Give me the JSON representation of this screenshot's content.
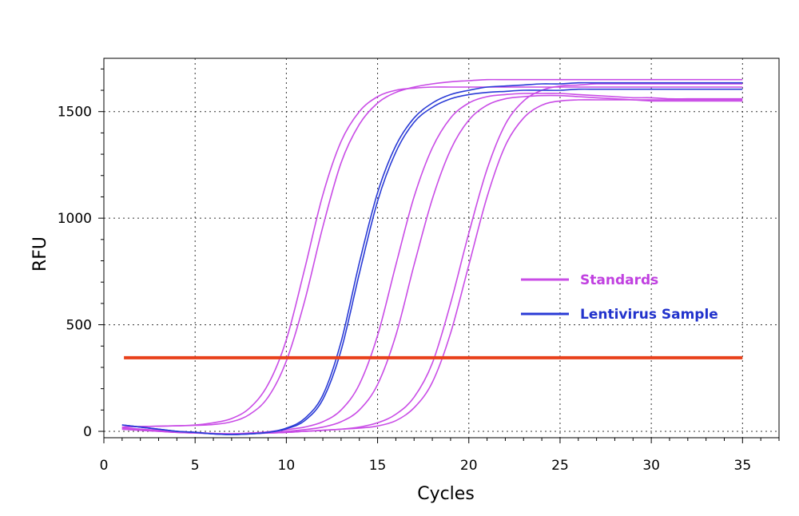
{
  "colors": {
    "standards": "#c94ce6",
    "sample": "#2a3bd6",
    "threshold": "#e8401a",
    "legend_standards_text": "#c040e0",
    "legend_sample_text": "#2233cc"
  },
  "chart_data": {
    "type": "line",
    "title": "",
    "xlabel": "Cycles",
    "ylabel": "RFU",
    "xlim": [
      0,
      37
    ],
    "ylim": [
      -30,
      1750
    ],
    "xticks": [
      0,
      5,
      10,
      15,
      20,
      25,
      30,
      35
    ],
    "yticks": [
      0,
      500,
      1000,
      1500
    ],
    "grid": true,
    "legend_position": "center-right",
    "legend": [
      {
        "label": "Standards",
        "series_group": "standards"
      },
      {
        "label": "Lentivirus Sample",
        "series_group": "sample"
      }
    ],
    "threshold": {
      "y": 345,
      "x_start": 1.1,
      "x_end": 35
    },
    "x": [
      1,
      2,
      3,
      4,
      5,
      6,
      7,
      8,
      9,
      10,
      11,
      12,
      13,
      14,
      15,
      16,
      17,
      18,
      19,
      20,
      21,
      22,
      23,
      24,
      25,
      26,
      27,
      28,
      29,
      30,
      31,
      32,
      33,
      34,
      35
    ],
    "series": [
      {
        "group": "standards",
        "values": [
          20,
          22,
          24,
          26,
          30,
          40,
          60,
          110,
          220,
          430,
          760,
          1110,
          1360,
          1500,
          1570,
          1600,
          1610,
          1615,
          1615,
          1615,
          1615,
          1615,
          1615,
          1615,
          1615,
          1615,
          1615,
          1615,
          1615,
          1615,
          1615,
          1615,
          1615,
          1615,
          1615
        ]
      },
      {
        "group": "standards",
        "values": [
          20,
          22,
          24,
          26,
          28,
          32,
          45,
          80,
          160,
          330,
          610,
          960,
          1260,
          1440,
          1540,
          1590,
          1615,
          1630,
          1640,
          1645,
          1650,
          1650,
          1650,
          1650,
          1650,
          1650,
          1650,
          1650,
          1650,
          1650,
          1650,
          1650,
          1650,
          1650,
          1650
        ]
      },
      {
        "group": "standards",
        "values": [
          15,
          10,
          5,
          0,
          -5,
          -10,
          -12,
          -8,
          -2,
          8,
          20,
          45,
          100,
          220,
          450,
          780,
          1100,
          1330,
          1470,
          1540,
          1570,
          1580,
          1585,
          1585,
          1585,
          1580,
          1575,
          1570,
          1565,
          1565,
          1560,
          1560,
          1560,
          1560,
          1560
        ]
      },
      {
        "group": "standards",
        "values": [
          15,
          10,
          5,
          0,
          -5,
          -10,
          -12,
          -10,
          -5,
          0,
          8,
          20,
          45,
          100,
          220,
          450,
          780,
          1090,
          1320,
          1460,
          1530,
          1560,
          1570,
          1575,
          1575,
          1570,
          1565,
          1560,
          1555,
          1550,
          1550,
          1550,
          1550,
          1550,
          1550
        ]
      },
      {
        "group": "standards",
        "values": [
          10,
          5,
          0,
          -5,
          -8,
          -10,
          -12,
          -10,
          -8,
          -5,
          0,
          5,
          10,
          20,
          40,
          80,
          160,
          320,
          600,
          930,
          1230,
          1440,
          1550,
          1600,
          1620,
          1625,
          1630,
          1630,
          1630,
          1630,
          1630,
          1630,
          1630,
          1630,
          1630
        ]
      },
      {
        "group": "standards",
        "values": [
          10,
          5,
          0,
          -5,
          -8,
          -10,
          -12,
          -10,
          -8,
          -5,
          0,
          5,
          10,
          15,
          25,
          50,
          110,
          230,
          460,
          780,
          1100,
          1340,
          1470,
          1530,
          1550,
          1555,
          1555,
          1555,
          1555,
          1555,
          1555,
          1555,
          1555,
          1555,
          1555
        ]
      },
      {
        "group": "sample",
        "values": [
          30,
          20,
          10,
          0,
          -5,
          -12,
          -15,
          -12,
          -5,
          15,
          60,
          170,
          420,
          790,
          1120,
          1340,
          1470,
          1540,
          1580,
          1600,
          1615,
          1620,
          1625,
          1630,
          1630,
          1635,
          1635,
          1635,
          1635,
          1635,
          1635,
          1635,
          1635,
          1635,
          1635
        ]
      },
      {
        "group": "sample",
        "values": [
          30,
          20,
          10,
          0,
          -5,
          -12,
          -15,
          -12,
          -5,
          12,
          50,
          150,
          380,
          740,
          1080,
          1310,
          1450,
          1520,
          1560,
          1580,
          1590,
          1595,
          1600,
          1600,
          1600,
          1605,
          1605,
          1605,
          1605,
          1605,
          1605,
          1605,
          1605,
          1605,
          1605
        ]
      }
    ]
  }
}
